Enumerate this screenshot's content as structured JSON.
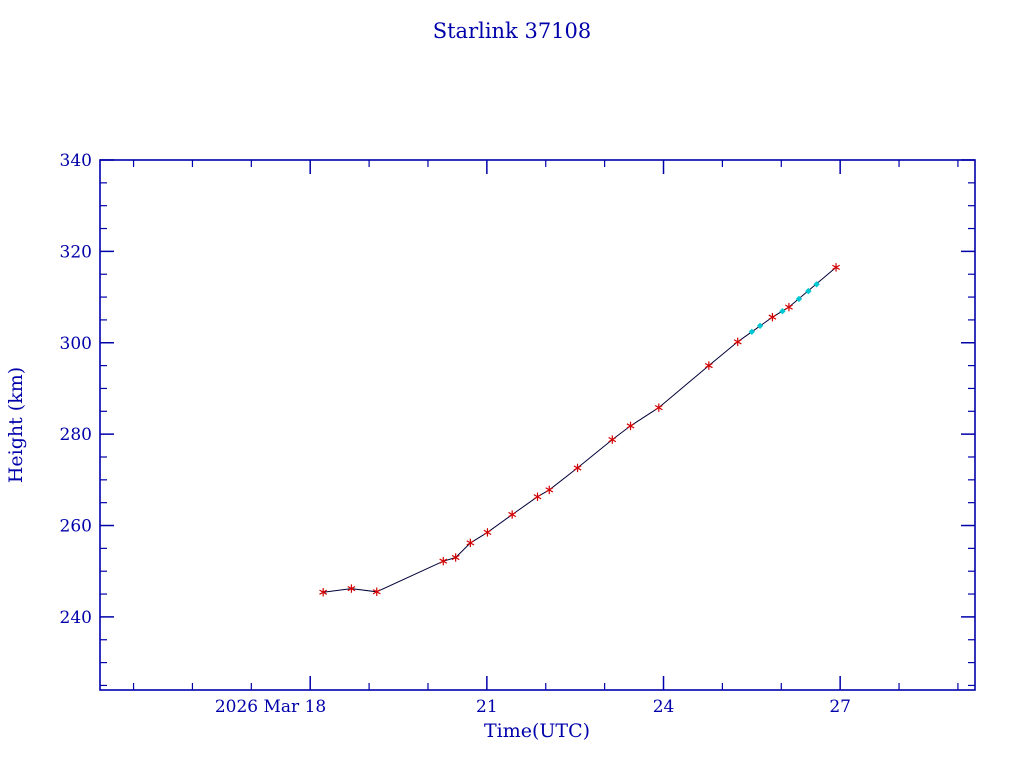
{
  "page": {
    "background": "#ffffff"
  },
  "chart_data": {
    "type": "line",
    "title": "Starlink 37108",
    "xlabel": "Time(UTC)",
    "ylabel": "Height (km)",
    "grid": false,
    "legend": "none",
    "xlim": [
      14.43,
      29.29
    ],
    "ylim": [
      224,
      340
    ],
    "x_major_ticks": [
      {
        "value": 18,
        "label": "2026 Mar 18"
      },
      {
        "value": 21,
        "label": "21"
      },
      {
        "value": 24,
        "label": "24"
      },
      {
        "value": 27,
        "label": "27"
      }
    ],
    "x_minor_step": 1,
    "y_major_ticks": [
      {
        "value": 240,
        "label": "240"
      },
      {
        "value": 260,
        "label": "260"
      },
      {
        "value": 280,
        "label": "280"
      },
      {
        "value": 300,
        "label": "300"
      },
      {
        "value": 320,
        "label": "320"
      },
      {
        "value": 340,
        "label": "340"
      }
    ],
    "y_minor_step": 5,
    "colors": {
      "axis": "#0000aa",
      "line": "#000038",
      "observed_marker": "#d40000",
      "predicted_marker": "#00c8d2"
    },
    "series": [
      {
        "name": "observed-heights",
        "marker": "asterisk",
        "color_key": "observed_marker",
        "draw_line": true,
        "points": [
          [
            18.22,
            245.4
          ],
          [
            18.7,
            246.2
          ],
          [
            19.13,
            245.5
          ],
          [
            20.26,
            252.2
          ],
          [
            20.47,
            253.0
          ],
          [
            20.72,
            256.2
          ],
          [
            21.01,
            258.5
          ],
          [
            21.43,
            262.4
          ],
          [
            21.86,
            266.3
          ],
          [
            22.06,
            267.8
          ],
          [
            22.54,
            272.6
          ],
          [
            23.13,
            278.8
          ],
          [
            23.44,
            281.8
          ],
          [
            23.92,
            285.8
          ],
          [
            24.77,
            295.0
          ],
          [
            25.26,
            300.2
          ],
          [
            25.85,
            305.6
          ],
          [
            26.13,
            307.8
          ],
          [
            26.93,
            316.5
          ]
        ]
      },
      {
        "name": "predicted-heights",
        "marker": "diamond",
        "color_key": "predicted_marker",
        "draw_line": false,
        "points": [
          [
            25.5,
            302.4
          ],
          [
            25.64,
            303.7
          ],
          [
            26.02,
            306.9
          ],
          [
            26.3,
            309.6
          ],
          [
            26.46,
            311.3
          ],
          [
            26.6,
            312.8
          ]
        ]
      }
    ]
  }
}
